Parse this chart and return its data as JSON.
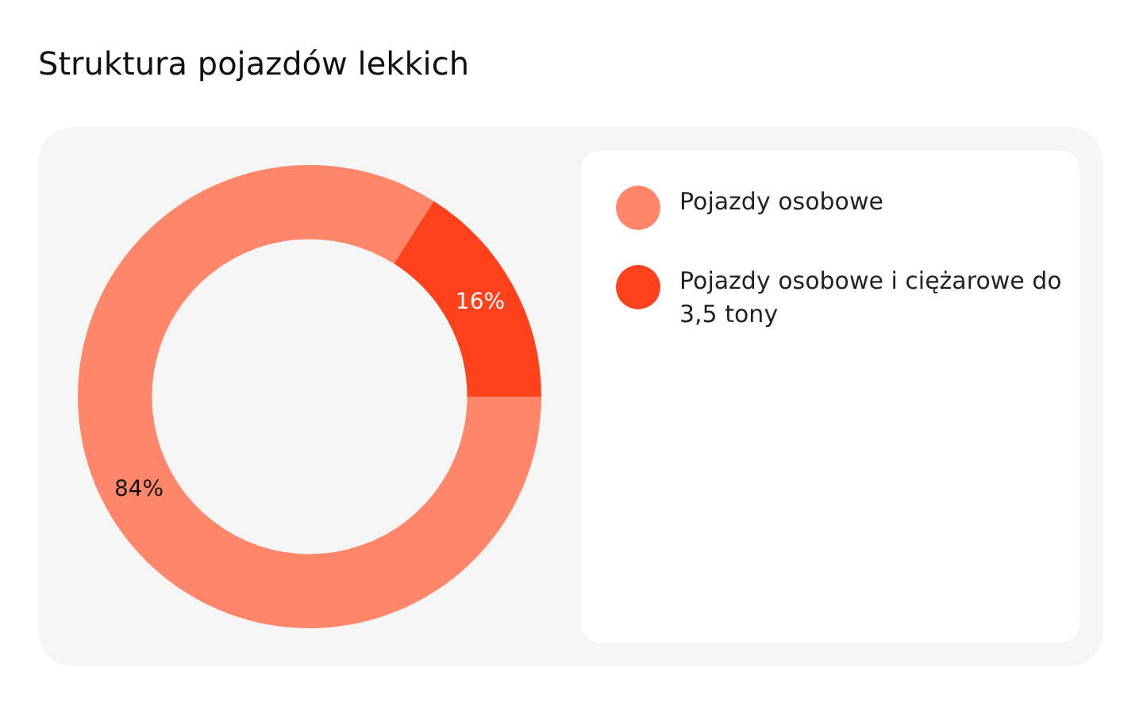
{
  "chart_data": {
    "type": "donut",
    "title": "Struktura pojazdów lekkich",
    "categories": [
      "Pojazdy osobowe",
      "Pojazdy osobowe i ciężarowe do 3,5 tony"
    ],
    "values": [
      84,
      16
    ],
    "colors": [
      "#ff8669",
      "#ff421c"
    ],
    "value_labels": [
      "84%",
      "16%"
    ],
    "legend": "right"
  }
}
